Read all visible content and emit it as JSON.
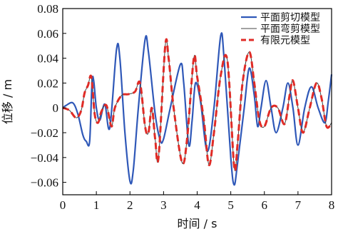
{
  "chart_data": {
    "type": "line",
    "xlabel": "时间 / s",
    "ylabel": "位移 / m",
    "xlim": [
      0,
      8
    ],
    "ylim": [
      -0.07,
      0.08
    ],
    "x_ticks": [
      "0",
      "1",
      "2",
      "3",
      "4",
      "5",
      "6",
      "7",
      "8"
    ],
    "y_ticks": [
      "−0.06",
      "−0.04",
      "−0.02",
      "0",
      "0.02",
      "0.04",
      "0.06",
      "0.08"
    ],
    "y_tick_values": [
      -0.06,
      -0.04,
      -0.02,
      0,
      0.02,
      0.04,
      0.06,
      0.08
    ],
    "x_tick_values": [
      0,
      1,
      2,
      3,
      4,
      5,
      6,
      7,
      8
    ],
    "grid": false,
    "legend_position": "top-right",
    "series": [
      {
        "name": "平面剪切模型",
        "color": "#2f58b8",
        "style": "solid",
        "points": [
          [
            0,
            0
          ],
          [
            0.1,
            0.002
          ],
          [
            0.3,
            0.004
          ],
          [
            0.45,
            -0.005
          ],
          [
            0.6,
            -0.022
          ],
          [
            0.7,
            -0.027
          ],
          [
            0.8,
            -0.027
          ],
          [
            0.87,
            0.02
          ],
          [
            0.92,
            0.022
          ],
          [
            1.0,
            0.0
          ],
          [
            1.1,
            -0.01
          ],
          [
            1.25,
            0.003
          ],
          [
            1.4,
            -0.016
          ],
          [
            1.6,
            0.047
          ],
          [
            1.7,
            0.04
          ],
          [
            1.85,
            -0.02
          ],
          [
            2.0,
            -0.059
          ],
          [
            2.1,
            -0.05
          ],
          [
            2.25,
            0.0
          ],
          [
            2.45,
            0.055
          ],
          [
            2.55,
            0.045
          ],
          [
            2.75,
            -0.005
          ],
          [
            2.9,
            -0.026
          ],
          [
            3.0,
            -0.025
          ],
          [
            3.2,
            0.0
          ],
          [
            3.5,
            0.035
          ],
          [
            3.6,
            0.02
          ],
          [
            3.75,
            -0.03
          ],
          [
            3.85,
            -0.01
          ],
          [
            3.95,
            0.02
          ],
          [
            4.1,
            0.005
          ],
          [
            4.3,
            -0.035
          ],
          [
            4.5,
            0.0
          ],
          [
            4.7,
            0.058
          ],
          [
            4.8,
            0.04
          ],
          [
            5.0,
            -0.04
          ],
          [
            5.1,
            -0.062
          ],
          [
            5.2,
            -0.045
          ],
          [
            5.4,
            0.0
          ],
          [
            5.55,
            0.032
          ],
          [
            5.7,
            0.01
          ],
          [
            5.8,
            -0.015
          ],
          [
            5.9,
            0.0
          ],
          [
            6.05,
            0.022
          ],
          [
            6.2,
            0.0
          ],
          [
            6.35,
            -0.02
          ],
          [
            6.55,
            0.0
          ],
          [
            6.7,
            0.02
          ],
          [
            6.85,
            0.0
          ],
          [
            7.0,
            -0.03
          ],
          [
            7.2,
            0.0
          ],
          [
            7.4,
            0.017
          ],
          [
            7.6,
            0.0
          ],
          [
            7.8,
            -0.012
          ],
          [
            7.9,
            0.005
          ],
          [
            8.0,
            0.027
          ]
        ]
      },
      {
        "name": "平面弯剪模型",
        "color": "#444444",
        "style": "thin",
        "points": [
          [
            0,
            0
          ],
          [
            0.2,
            -0.002
          ],
          [
            0.4,
            -0.008
          ],
          [
            0.55,
            -0.002
          ],
          [
            0.65,
            0.012
          ],
          [
            0.75,
            0.018
          ],
          [
            0.85,
            0.025
          ],
          [
            0.95,
            -0.005
          ],
          [
            1.05,
            -0.012
          ],
          [
            1.15,
            -0.003
          ],
          [
            1.3,
            0.002
          ],
          [
            1.45,
            -0.015
          ],
          [
            1.55,
            0.0
          ],
          [
            1.75,
            0.01
          ],
          [
            1.95,
            0.011
          ],
          [
            2.15,
            0.013
          ],
          [
            2.3,
            0.02
          ],
          [
            2.45,
            -0.015
          ],
          [
            2.55,
            -0.02
          ],
          [
            2.65,
            0.0
          ],
          [
            2.75,
            -0.025
          ],
          [
            2.85,
            -0.04
          ],
          [
            3.05,
            0.05
          ],
          [
            3.15,
            0.04
          ],
          [
            3.3,
            0.0
          ],
          [
            3.55,
            -0.044
          ],
          [
            3.7,
            -0.025
          ],
          [
            3.9,
            0.04
          ],
          [
            4.0,
            0.025
          ],
          [
            4.2,
            -0.01
          ],
          [
            4.35,
            -0.046
          ],
          [
            4.5,
            -0.02
          ],
          [
            4.7,
            0.026
          ],
          [
            4.9,
            0.038
          ],
          [
            5.1,
            -0.047
          ],
          [
            5.2,
            -0.03
          ],
          [
            5.35,
            0.02
          ],
          [
            5.55,
            0.045
          ],
          [
            5.7,
            0.02
          ],
          [
            5.85,
            -0.01
          ],
          [
            6.0,
            -0.015
          ],
          [
            6.2,
            0.0
          ],
          [
            6.4,
            0.0
          ],
          [
            6.6,
            -0.013
          ],
          [
            6.75,
            0.01
          ],
          [
            6.85,
            0.022
          ],
          [
            7.0,
            0.0
          ],
          [
            7.15,
            -0.02
          ],
          [
            7.35,
            0.0
          ],
          [
            7.55,
            0.02
          ],
          [
            7.7,
            0.008
          ],
          [
            7.85,
            -0.015
          ],
          [
            8.0,
            -0.012
          ]
        ]
      },
      {
        "name": "有限元模型",
        "color": "#e02b26",
        "style": "dashed",
        "points": [
          [
            0,
            0
          ],
          [
            0.2,
            -0.002
          ],
          [
            0.4,
            -0.008
          ],
          [
            0.55,
            -0.002
          ],
          [
            0.65,
            0.012
          ],
          [
            0.75,
            0.018
          ],
          [
            0.85,
            0.025
          ],
          [
            0.95,
            -0.005
          ],
          [
            1.05,
            -0.012
          ],
          [
            1.15,
            -0.003
          ],
          [
            1.3,
            0.002
          ],
          [
            1.45,
            -0.015
          ],
          [
            1.55,
            0.0
          ],
          [
            1.75,
            0.01
          ],
          [
            1.95,
            0.011
          ],
          [
            2.15,
            0.013
          ],
          [
            2.3,
            0.02
          ],
          [
            2.45,
            -0.015
          ],
          [
            2.55,
            -0.02
          ],
          [
            2.65,
            0.0
          ],
          [
            2.75,
            -0.025
          ],
          [
            2.85,
            -0.04
          ],
          [
            3.05,
            0.05
          ],
          [
            3.15,
            0.04
          ],
          [
            3.3,
            0.0
          ],
          [
            3.55,
            -0.044
          ],
          [
            3.7,
            -0.025
          ],
          [
            3.9,
            0.04
          ],
          [
            4.0,
            0.025
          ],
          [
            4.2,
            -0.01
          ],
          [
            4.35,
            -0.046
          ],
          [
            4.5,
            -0.02
          ],
          [
            4.7,
            0.026
          ],
          [
            4.9,
            0.038
          ],
          [
            5.1,
            -0.047
          ],
          [
            5.2,
            -0.03
          ],
          [
            5.35,
            0.02
          ],
          [
            5.55,
            0.045
          ],
          [
            5.7,
            0.02
          ],
          [
            5.85,
            -0.01
          ],
          [
            6.0,
            -0.015
          ],
          [
            6.2,
            0.0
          ],
          [
            6.4,
            0.0
          ],
          [
            6.6,
            -0.013
          ],
          [
            6.75,
            0.01
          ],
          [
            6.85,
            0.022
          ],
          [
            7.0,
            0.0
          ],
          [
            7.15,
            -0.02
          ],
          [
            7.35,
            0.0
          ],
          [
            7.55,
            0.02
          ],
          [
            7.7,
            0.008
          ],
          [
            7.85,
            -0.015
          ],
          [
            8.0,
            -0.012
          ]
        ]
      }
    ]
  }
}
